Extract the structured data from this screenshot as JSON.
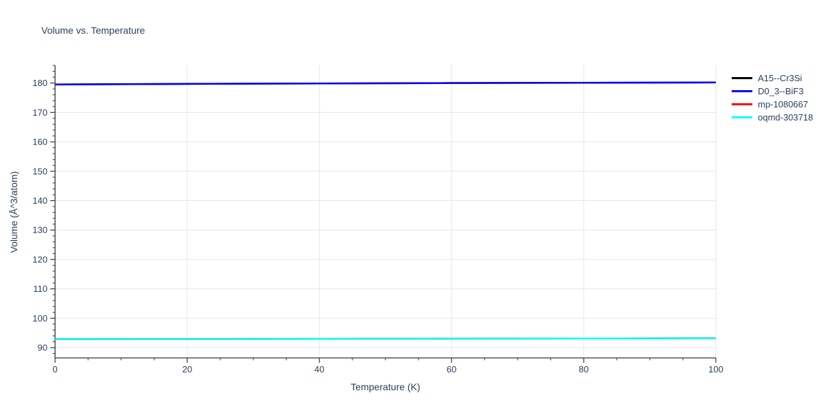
{
  "chart_data": {
    "type": "line",
    "title": "Volume vs. Temperature",
    "xlabel": "Temperature (K)",
    "ylabel": "Volume (Å^3/atom)",
    "xlim": [
      0,
      100
    ],
    "ylim": [
      86.5,
      186
    ],
    "x_major_ticks": [
      0,
      20,
      40,
      60,
      80,
      100
    ],
    "x_minor_step": 5,
    "y_major_ticks": [
      90,
      100,
      110,
      120,
      130,
      140,
      150,
      160,
      170,
      180
    ],
    "y_minor_step": 2,
    "grid": true,
    "legend_position": "top-right",
    "series": [
      {
        "name": "A15--Cr3Si",
        "color": "#000000",
        "x": [
          0,
          20,
          40,
          60,
          80,
          100
        ],
        "y": [
          179.5,
          179.7,
          179.85,
          180.0,
          180.1,
          180.2
        ]
      },
      {
        "name": "D0_3--BiF3",
        "color": "#0000ff",
        "x": [
          0,
          20,
          40,
          60,
          80,
          100
        ],
        "y": [
          179.5,
          179.7,
          179.85,
          180.0,
          180.1,
          180.2
        ]
      },
      {
        "name": "mp-1080667",
        "color": "#ff0000",
        "x": [
          0,
          20,
          40,
          60,
          80,
          100
        ],
        "y": [
          92.9,
          92.95,
          93.0,
          93.05,
          93.1,
          93.2
        ]
      },
      {
        "name": "oqmd-303718",
        "color": "#00ffff",
        "x": [
          0,
          20,
          40,
          60,
          80,
          100
        ],
        "y": [
          92.9,
          92.95,
          93.0,
          93.05,
          93.1,
          93.2
        ]
      }
    ]
  },
  "styles": {
    "text_color": "#2a3f5f",
    "axis_color": "#333333",
    "grid_color": "#e6e6e6",
    "background": "#ffffff"
  }
}
